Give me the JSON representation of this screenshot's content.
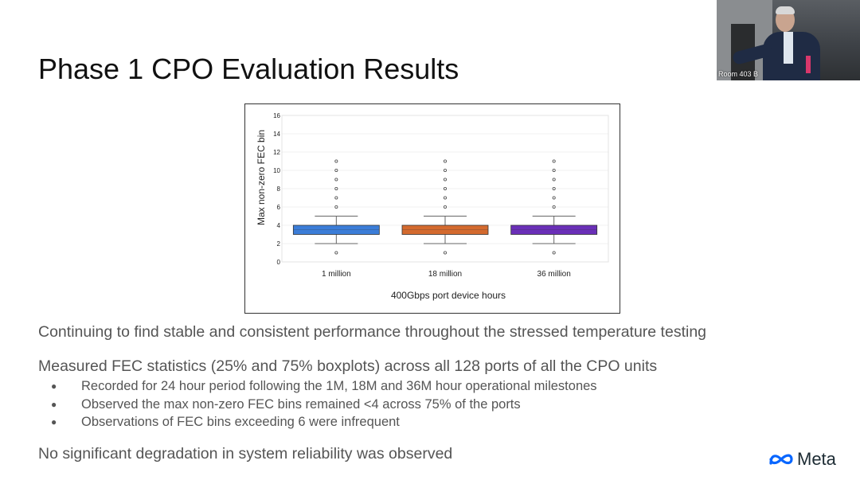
{
  "slide": {
    "title": "Phase 1 CPO Evaluation Results",
    "paragraphs": [
      "Continuing to find stable and consistent performance throughout the stressed temperature testing",
      "Measured FEC statistics (25% and 75% boxplots) across all 128 ports of all the CPO units",
      "No significant degradation in system reliability was observed"
    ],
    "bullets": [
      "Recorded for 24 hour period following the 1M, 18M and 36M hour operational milestones",
      "Observed the max non-zero FEC bins remained <4 across 75% of the ports",
      "Observations of FEC bins exceeding 6 were infrequent"
    ]
  },
  "webcam": {
    "room_label": "Room 403 B"
  },
  "logo": {
    "text": "Meta",
    "icon": "meta-infinity-icon",
    "color": "#0866ff"
  },
  "chart_data": {
    "type": "boxplot",
    "xlabel": "400Gbps port device hours",
    "ylabel": "Max non-zero FEC bin",
    "ylim": [
      0,
      16
    ],
    "yticks": [
      0,
      2,
      4,
      6,
      8,
      10,
      12,
      14,
      16
    ],
    "grid": true,
    "categories": [
      "1 million",
      "18 million",
      "36 million"
    ],
    "series": [
      {
        "category": "1 million",
        "color": "#3b7dd8",
        "whisker_low": 2,
        "q1": 3,
        "median": 3.5,
        "q3": 4,
        "whisker_high": 5,
        "outliers": [
          1,
          6,
          7,
          8,
          9,
          10,
          11
        ]
      },
      {
        "category": "18 million",
        "color": "#d46a2e",
        "whisker_low": 2,
        "q1": 3,
        "median": 3.5,
        "q3": 4,
        "whisker_high": 5,
        "outliers": [
          1,
          6,
          7,
          8,
          9,
          10,
          11
        ]
      },
      {
        "category": "36 million",
        "color": "#6a2fb8",
        "whisker_low": 2,
        "q1": 3,
        "median": 3.5,
        "q3": 4,
        "whisker_high": 5,
        "outliers": [
          1,
          6,
          7,
          8,
          9,
          10,
          11
        ]
      }
    ]
  }
}
